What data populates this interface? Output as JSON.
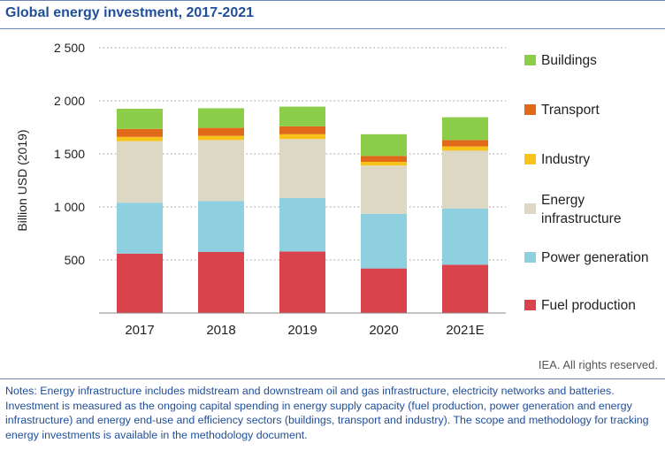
{
  "title": "Global energy investment, 2017-2021",
  "copyright": "IEA. All rights reserved.",
  "notes": [
    "Notes: Energy infrastructure includes midstream and downstream oil and gas infrastructure, electricity networks and batteries.",
    "Investment is measured as the ongoing capital spending in energy supply capacity (fuel production, power generation and energy infrastructure) and energy end-use and efficiency sectors (buildings, transport and industry). The scope and methodology for tracking energy investments is available in the methodology document."
  ],
  "chart_data": {
    "type": "bar",
    "stacked": true,
    "categories": [
      "2017",
      "2018",
      "2019",
      "2020",
      "2021E"
    ],
    "ylabel": "Billion USD (2019)",
    "ylim": [
      0,
      2500
    ],
    "yticks": [
      500,
      1000,
      1500,
      2000,
      2500
    ],
    "ytick_labels": [
      "500",
      "1 000",
      "1 500",
      "2 000",
      "2 500"
    ],
    "grid": true,
    "legend_position": "right",
    "series": [
      {
        "name": "Fuel production",
        "color": "#d9434b",
        "values": [
          560,
          575,
          580,
          420,
          455
        ]
      },
      {
        "name": "Power generation",
        "color": "#8ecfe0",
        "values": [
          480,
          480,
          505,
          515,
          530
        ]
      },
      {
        "name": "Energy infrastructure",
        "color": "#dcd8c4",
        "values": [
          580,
          575,
          555,
          455,
          545
        ]
      },
      {
        "name": "Industry",
        "color": "#f7c31a",
        "values": [
          40,
          40,
          45,
          35,
          40
        ]
      },
      {
        "name": "Transport",
        "color": "#e0691a",
        "values": [
          75,
          75,
          75,
          55,
          60
        ]
      },
      {
        "name": "Buildings",
        "color": "#8cce4a",
        "values": [
          190,
          185,
          185,
          205,
          215
        ]
      }
    ],
    "legend_order": [
      "Buildings",
      "Transport",
      "Industry",
      "Energy infrastructure",
      "Power generation",
      "Fuel production"
    ],
    "legend_lines": {
      "Energy infrastructure": [
        "Energy",
        "infrastructure"
      ]
    }
  }
}
